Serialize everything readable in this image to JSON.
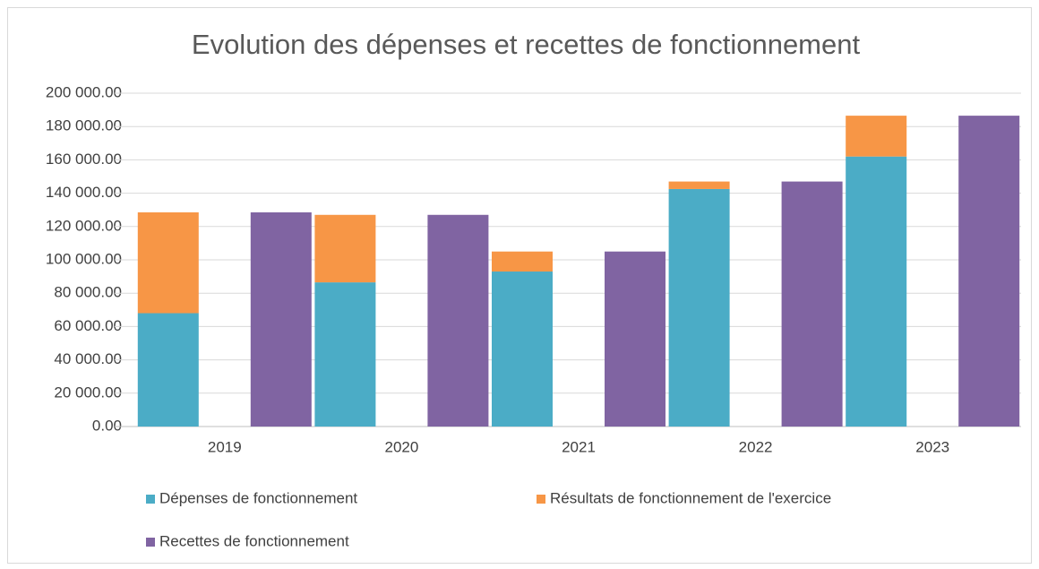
{
  "chart_data": {
    "type": "bar",
    "title": "Evolution des dépenses et recettes de fonctionnement",
    "categories": [
      "2019",
      "2020",
      "2021",
      "2022",
      "2023"
    ],
    "series": [
      {
        "name": "Dépenses de fonctionnement",
        "color": "#4bacc6",
        "stack": "a",
        "values": [
          68000,
          86500,
          93000,
          142500,
          162000
        ]
      },
      {
        "name": "Résultats de fonctionnement de l'exercice",
        "color": "#f79646",
        "stack": "a",
        "values": [
          60500,
          40500,
          12000,
          4500,
          24500
        ]
      },
      {
        "name": "Recettes de fonctionnement",
        "color": "#8064a2",
        "stack": "b",
        "values": [
          128500,
          127000,
          105000,
          147000,
          186500
        ]
      }
    ],
    "ylim": [
      0,
      200000
    ],
    "yticks": [
      {
        "value": 0,
        "label": "0.00"
      },
      {
        "value": 20000,
        "label": "20 000.00"
      },
      {
        "value": 40000,
        "label": "40 000.00"
      },
      {
        "value": 60000,
        "label": "60 000.00"
      },
      {
        "value": 80000,
        "label": "80 000.00"
      },
      {
        "value": 100000,
        "label": "100 000.00"
      },
      {
        "value": 120000,
        "label": "120 000.00"
      },
      {
        "value": 140000,
        "label": "140 000.00"
      },
      {
        "value": 160000,
        "label": "160 000.00"
      },
      {
        "value": 180000,
        "label": "180 000.00"
      },
      {
        "value": 200000,
        "label": "200 000.00"
      }
    ],
    "grid": true,
    "legend": "bottom"
  }
}
